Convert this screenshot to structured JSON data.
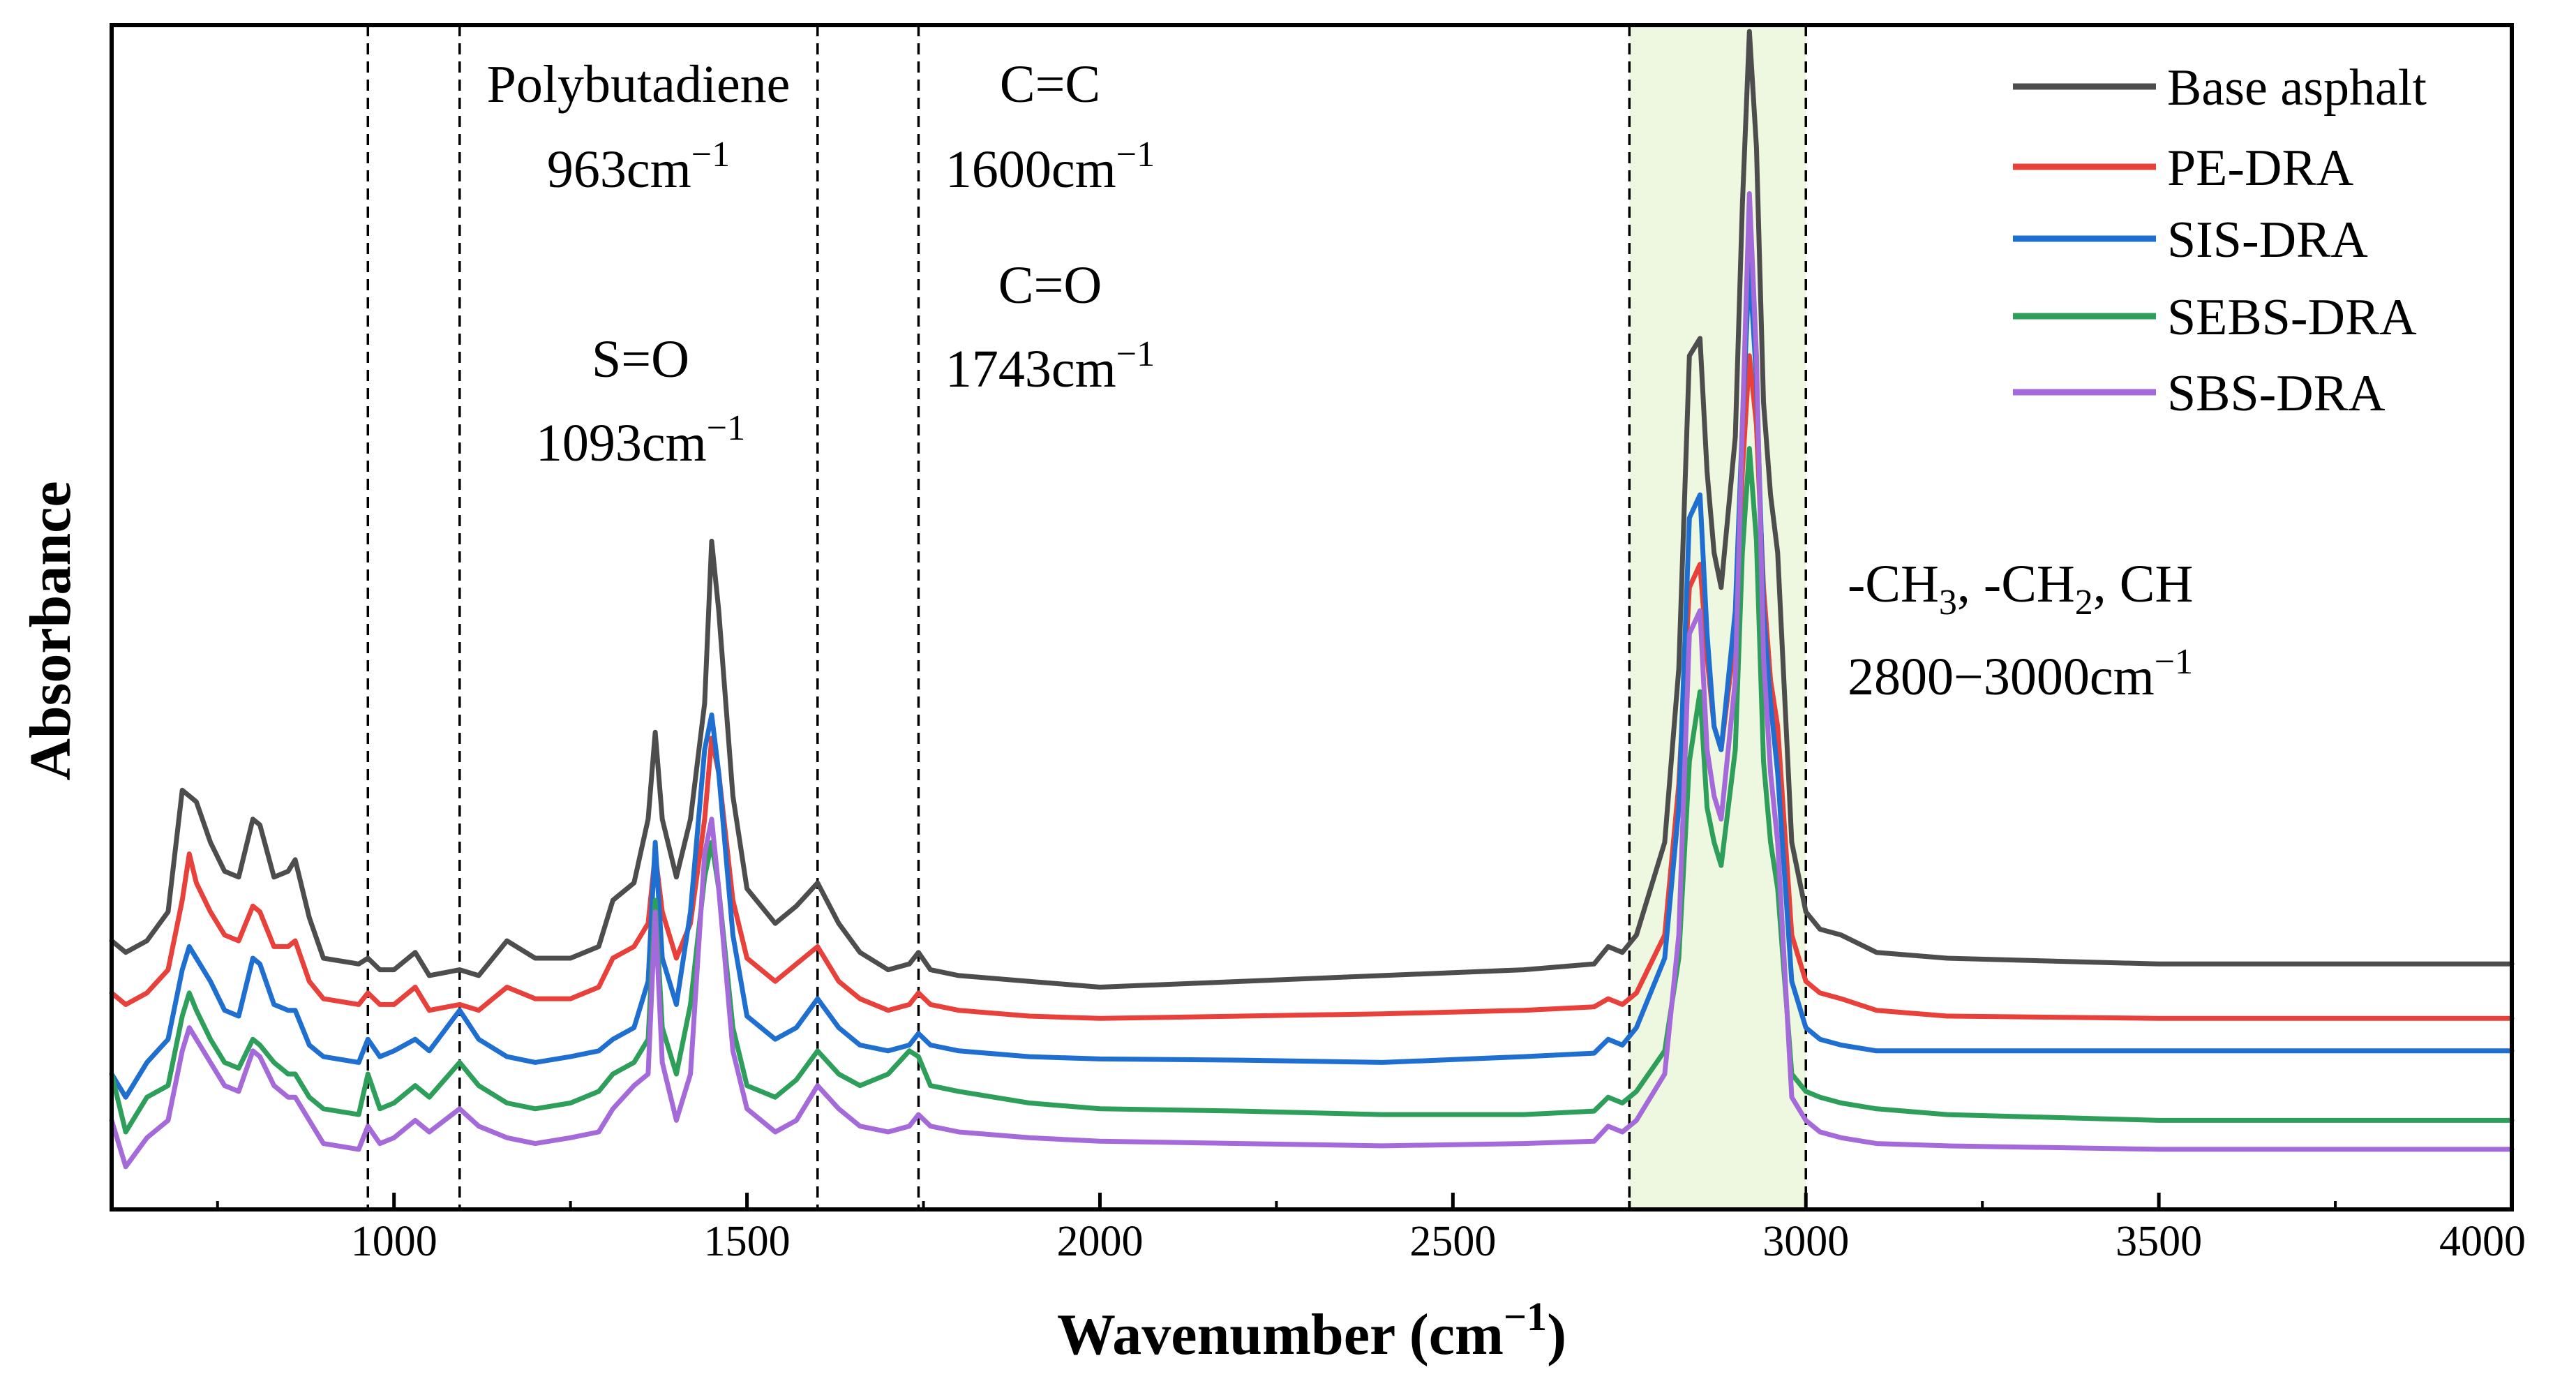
{
  "chart_data": {
    "type": "line",
    "title": "",
    "xlabel": "Wavenumber (cm",
    "xlabel_sup": "−1",
    "xlabel_close": ")",
    "ylabel": "Absorbance",
    "xlim": [
      600,
      4000
    ],
    "ylim": [
      0,
      1
    ],
    "x_ticks": [
      1000,
      1500,
      2000,
      2500,
      3000,
      3500,
      4000
    ],
    "x_tick_labels": [
      "1000",
      "1500",
      "2000",
      "2500",
      "3000",
      "3500",
      "4000"
    ],
    "y_ticks_visible": false,
    "grid": false,
    "legend_position": "top-right",
    "reference_lines": [
      963,
      1093,
      1600,
      1743,
      2750,
      3000
    ],
    "highlight_band": {
      "from": 2750,
      "to": 3000,
      "color": "#eef7e0"
    },
    "annotations": [
      {
        "id": "polybutadiene",
        "lines": [
          {
            "text": "Polybutadiene"
          },
          {
            "text": "963cm",
            "sup": "−1"
          }
        ]
      },
      {
        "id": "so",
        "lines": [
          {
            "text": "S=O"
          },
          {
            "text": "1093cm",
            "sup": "−1"
          }
        ]
      },
      {
        "id": "cc",
        "lines": [
          {
            "text": "C=C"
          },
          {
            "text": "1600cm",
            "sup": "−1"
          }
        ]
      },
      {
        "id": "co",
        "lines": [
          {
            "text": "C=O"
          },
          {
            "text": "1743cm",
            "sup": "−1"
          }
        ]
      },
      {
        "id": "ch",
        "lines": [
          {
            "text": "-CH",
            "sub1": "3",
            "mid": ", -CH",
            "sub2": "2",
            "tail": ", CH"
          },
          {
            "text": "2800−3000cm",
            "sup": "−1"
          }
        ]
      }
    ],
    "series": [
      {
        "name": "Base asphalt",
        "color": "#4d4d4d",
        "x": [
          600,
          620,
          650,
          680,
          700,
          710,
          720,
          740,
          760,
          780,
          800,
          810,
          830,
          850,
          860,
          880,
          900,
          950,
          963,
          980,
          1000,
          1030,
          1050,
          1093,
          1120,
          1160,
          1200,
          1250,
          1290,
          1310,
          1340,
          1360,
          1370,
          1380,
          1400,
          1420,
          1440,
          1450,
          1460,
          1480,
          1500,
          1540,
          1570,
          1600,
          1630,
          1660,
          1700,
          1730,
          1743,
          1760,
          1800,
          1900,
          2000,
          2200,
          2400,
          2600,
          2700,
          2720,
          2740,
          2760,
          2800,
          2820,
          2835,
          2850,
          2860,
          2870,
          2880,
          2900,
          2910,
          2920,
          2930,
          2940,
          2950,
          2960,
          2980,
          3000,
          3020,
          3050,
          3100,
          3200,
          3500,
          4000
        ],
        "y": [
          0.215,
          0.205,
          0.215,
          0.24,
          0.345,
          0.34,
          0.335,
          0.3,
          0.275,
          0.27,
          0.32,
          0.315,
          0.27,
          0.275,
          0.285,
          0.235,
          0.2,
          0.195,
          0.2,
          0.19,
          0.19,
          0.205,
          0.185,
          0.19,
          0.185,
          0.215,
          0.2,
          0.2,
          0.21,
          0.25,
          0.265,
          0.32,
          0.395,
          0.32,
          0.27,
          0.32,
          0.42,
          0.56,
          0.5,
          0.34,
          0.26,
          0.23,
          0.245,
          0.265,
          0.23,
          0.205,
          0.19,
          0.195,
          0.205,
          0.19,
          0.185,
          0.18,
          0.175,
          0.18,
          0.185,
          0.19,
          0.195,
          0.21,
          0.205,
          0.22,
          0.3,
          0.45,
          0.72,
          0.735,
          0.62,
          0.55,
          0.52,
          0.65,
          0.85,
          1.0,
          0.9,
          0.68,
          0.6,
          0.55,
          0.3,
          0.24,
          0.225,
          0.22,
          0.205,
          0.2,
          0.195,
          0.195
        ]
      },
      {
        "name": "PE-DRA",
        "color": "#e8403a",
        "x": [
          600,
          620,
          650,
          680,
          700,
          710,
          720,
          740,
          760,
          780,
          800,
          810,
          830,
          850,
          860,
          880,
          900,
          950,
          963,
          980,
          1000,
          1030,
          1050,
          1093,
          1120,
          1160,
          1200,
          1250,
          1290,
          1310,
          1340,
          1360,
          1370,
          1380,
          1400,
          1420,
          1440,
          1450,
          1460,
          1480,
          1500,
          1540,
          1570,
          1600,
          1630,
          1660,
          1700,
          1730,
          1743,
          1760,
          1800,
          1900,
          2000,
          2200,
          2400,
          2600,
          2700,
          2720,
          2740,
          2760,
          2800,
          2820,
          2835,
          2850,
          2860,
          2870,
          2880,
          2900,
          2910,
          2920,
          2930,
          2940,
          2950,
          2960,
          2980,
          3000,
          3020,
          3050,
          3100,
          3200,
          3500,
          4000
        ],
        "y": [
          0.17,
          0.16,
          0.17,
          0.19,
          0.25,
          0.29,
          0.265,
          0.24,
          0.22,
          0.215,
          0.245,
          0.24,
          0.21,
          0.21,
          0.215,
          0.18,
          0.165,
          0.16,
          0.17,
          0.16,
          0.16,
          0.175,
          0.155,
          0.16,
          0.155,
          0.175,
          0.165,
          0.165,
          0.175,
          0.2,
          0.21,
          0.23,
          0.29,
          0.24,
          0.2,
          0.23,
          0.32,
          0.39,
          0.36,
          0.25,
          0.2,
          0.18,
          0.195,
          0.21,
          0.18,
          0.165,
          0.155,
          0.16,
          0.17,
          0.16,
          0.155,
          0.15,
          0.148,
          0.15,
          0.152,
          0.155,
          0.158,
          0.165,
          0.16,
          0.17,
          0.22,
          0.35,
          0.52,
          0.54,
          0.46,
          0.4,
          0.38,
          0.48,
          0.62,
          0.72,
          0.66,
          0.52,
          0.44,
          0.4,
          0.22,
          0.18,
          0.17,
          0.165,
          0.155,
          0.15,
          0.148,
          0.148
        ]
      },
      {
        "name": "SIS-DRA",
        "color": "#1f6fd1",
        "x": [
          600,
          620,
          650,
          680,
          700,
          710,
          720,
          740,
          760,
          780,
          800,
          810,
          830,
          850,
          860,
          880,
          900,
          950,
          963,
          980,
          1000,
          1030,
          1050,
          1093,
          1120,
          1160,
          1200,
          1250,
          1290,
          1310,
          1340,
          1360,
          1370,
          1380,
          1400,
          1420,
          1440,
          1450,
          1460,
          1480,
          1500,
          1540,
          1570,
          1600,
          1630,
          1660,
          1700,
          1730,
          1743,
          1760,
          1800,
          1900,
          2000,
          2200,
          2400,
          2600,
          2700,
          2720,
          2740,
          2760,
          2800,
          2820,
          2835,
          2850,
          2860,
          2870,
          2880,
          2900,
          2910,
          2920,
          2930,
          2940,
          2950,
          2960,
          2980,
          3000,
          3020,
          3050,
          3100,
          3200,
          3500,
          4000
        ],
        "y": [
          0.1,
          0.08,
          0.11,
          0.13,
          0.19,
          0.21,
          0.2,
          0.18,
          0.155,
          0.15,
          0.2,
          0.195,
          0.16,
          0.155,
          0.155,
          0.125,
          0.115,
          0.11,
          0.13,
          0.115,
          0.12,
          0.13,
          0.12,
          0.155,
          0.13,
          0.115,
          0.11,
          0.115,
          0.12,
          0.13,
          0.14,
          0.18,
          0.3,
          0.2,
          0.16,
          0.24,
          0.38,
          0.41,
          0.36,
          0.22,
          0.15,
          0.13,
          0.14,
          0.165,
          0.14,
          0.125,
          0.12,
          0.125,
          0.135,
          0.125,
          0.12,
          0.115,
          0.113,
          0.112,
          0.11,
          0.115,
          0.118,
          0.13,
          0.125,
          0.14,
          0.2,
          0.33,
          0.58,
          0.6,
          0.48,
          0.4,
          0.38,
          0.5,
          0.66,
          0.8,
          0.7,
          0.5,
          0.42,
          0.36,
          0.18,
          0.14,
          0.13,
          0.125,
          0.12,
          0.12,
          0.12,
          0.12
        ]
      },
      {
        "name": "SEBS-DRA",
        "color": "#2e9e5b",
        "x": [
          600,
          620,
          650,
          680,
          700,
          710,
          720,
          740,
          760,
          780,
          800,
          810,
          830,
          850,
          860,
          880,
          900,
          950,
          963,
          980,
          1000,
          1030,
          1050,
          1093,
          1120,
          1160,
          1200,
          1250,
          1290,
          1310,
          1340,
          1360,
          1370,
          1380,
          1400,
          1420,
          1440,
          1450,
          1460,
          1480,
          1500,
          1540,
          1570,
          1600,
          1630,
          1660,
          1700,
          1730,
          1743,
          1760,
          1800,
          1900,
          2000,
          2200,
          2400,
          2600,
          2700,
          2720,
          2740,
          2760,
          2800,
          2820,
          2835,
          2850,
          2860,
          2870,
          2880,
          2900,
          2910,
          2920,
          2930,
          2940,
          2950,
          2960,
          2980,
          3000,
          3020,
          3050,
          3100,
          3200,
          3500,
          4000
        ],
        "y": [
          0.1,
          0.05,
          0.08,
          0.09,
          0.15,
          0.17,
          0.155,
          0.13,
          0.11,
          0.105,
          0.13,
          0.125,
          0.11,
          0.1,
          0.1,
          0.08,
          0.07,
          0.065,
          0.1,
          0.07,
          0.075,
          0.09,
          0.08,
          0.11,
          0.09,
          0.075,
          0.07,
          0.075,
          0.085,
          0.1,
          0.11,
          0.13,
          0.25,
          0.14,
          0.1,
          0.16,
          0.27,
          0.3,
          0.26,
          0.14,
          0.09,
          0.08,
          0.095,
          0.12,
          0.1,
          0.09,
          0.1,
          0.12,
          0.115,
          0.09,
          0.085,
          0.075,
          0.07,
          0.068,
          0.065,
          0.065,
          0.068,
          0.08,
          0.075,
          0.085,
          0.12,
          0.2,
          0.37,
          0.43,
          0.33,
          0.3,
          0.28,
          0.38,
          0.55,
          0.64,
          0.56,
          0.37,
          0.3,
          0.26,
          0.1,
          0.085,
          0.08,
          0.075,
          0.07,
          0.065,
          0.06,
          0.06
        ]
      },
      {
        "name": "SBS-DRA",
        "color": "#a56ad9",
        "x": [
          600,
          620,
          650,
          680,
          700,
          710,
          720,
          740,
          760,
          780,
          800,
          810,
          830,
          850,
          860,
          880,
          900,
          950,
          963,
          980,
          1000,
          1030,
          1050,
          1093,
          1120,
          1160,
          1200,
          1250,
          1290,
          1310,
          1340,
          1360,
          1370,
          1380,
          1400,
          1420,
          1440,
          1450,
          1460,
          1480,
          1500,
          1540,
          1570,
          1600,
          1630,
          1660,
          1700,
          1730,
          1743,
          1760,
          1800,
          1900,
          2000,
          2200,
          2400,
          2600,
          2700,
          2720,
          2740,
          2760,
          2800,
          2820,
          2835,
          2850,
          2860,
          2870,
          2880,
          2900,
          2910,
          2920,
          2930,
          2940,
          2950,
          2960,
          2980,
          3000,
          3020,
          3050,
          3100,
          3200,
          3500,
          4000
        ],
        "y": [
          0.06,
          0.02,
          0.045,
          0.06,
          0.12,
          0.14,
          0.13,
          0.11,
          0.09,
          0.085,
          0.12,
          0.115,
          0.09,
          0.08,
          0.08,
          0.06,
          0.04,
          0.035,
          0.055,
          0.04,
          0.045,
          0.06,
          0.05,
          0.07,
          0.055,
          0.045,
          0.04,
          0.045,
          0.05,
          0.07,
          0.09,
          0.1,
          0.24,
          0.11,
          0.06,
          0.1,
          0.29,
          0.32,
          0.26,
          0.12,
          0.07,
          0.05,
          0.06,
          0.09,
          0.07,
          0.055,
          0.05,
          0.055,
          0.065,
          0.055,
          0.05,
          0.045,
          0.042,
          0.04,
          0.038,
          0.04,
          0.042,
          0.055,
          0.05,
          0.06,
          0.1,
          0.22,
          0.48,
          0.5,
          0.38,
          0.34,
          0.32,
          0.44,
          0.66,
          0.86,
          0.72,
          0.46,
          0.36,
          0.3,
          0.08,
          0.06,
          0.05,
          0.045,
          0.04,
          0.038,
          0.035,
          0.035
        ]
      }
    ]
  }
}
